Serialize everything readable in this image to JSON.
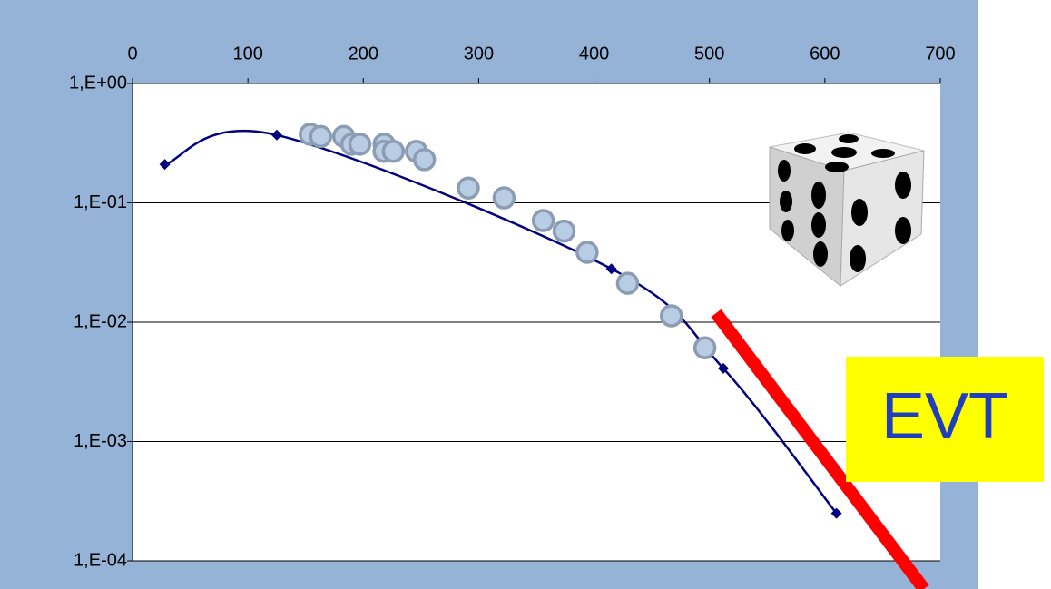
{
  "chart_data": {
    "type": "line",
    "annotation": "EVT",
    "x_axis_position": "top",
    "yscale": "log",
    "grid": true,
    "xlim": [
      0,
      700
    ],
    "xticks": [
      0,
      100,
      200,
      300,
      400,
      500,
      600,
      700
    ],
    "ylim": [
      0.0001,
      1
    ],
    "yticks": [
      {
        "value": 1,
        "label": "1,E+00"
      },
      {
        "value": 0.1,
        "label": "1,E-01"
      },
      {
        "value": 0.01,
        "label": "1,E-02"
      },
      {
        "value": 0.001,
        "label": "1,E-03"
      },
      {
        "value": 0.0001,
        "label": "1,E-04"
      }
    ],
    "series": [
      {
        "color": "#000080",
        "x": [
          28,
          125,
          415,
          512,
          610
        ],
        "values": [
          0.21,
          0.37,
          0.028,
          0.0041,
          0.00025
        ]
      },
      {
        "color": "#b8cce4",
        "x": [
          154,
          163,
          183,
          190,
          197,
          218,
          218,
          226,
          246,
          253,
          291,
          322,
          356,
          374,
          394,
          429,
          467,
          496
        ],
        "values": [
          0.375,
          0.36,
          0.36,
          0.31,
          0.31,
          0.31,
          0.27,
          0.27,
          0.27,
          0.23,
          0.133,
          0.11,
          0.071,
          0.058,
          0.0385,
          0.0212,
          0.0113,
          0.0061
        ]
      }
    ]
  }
}
